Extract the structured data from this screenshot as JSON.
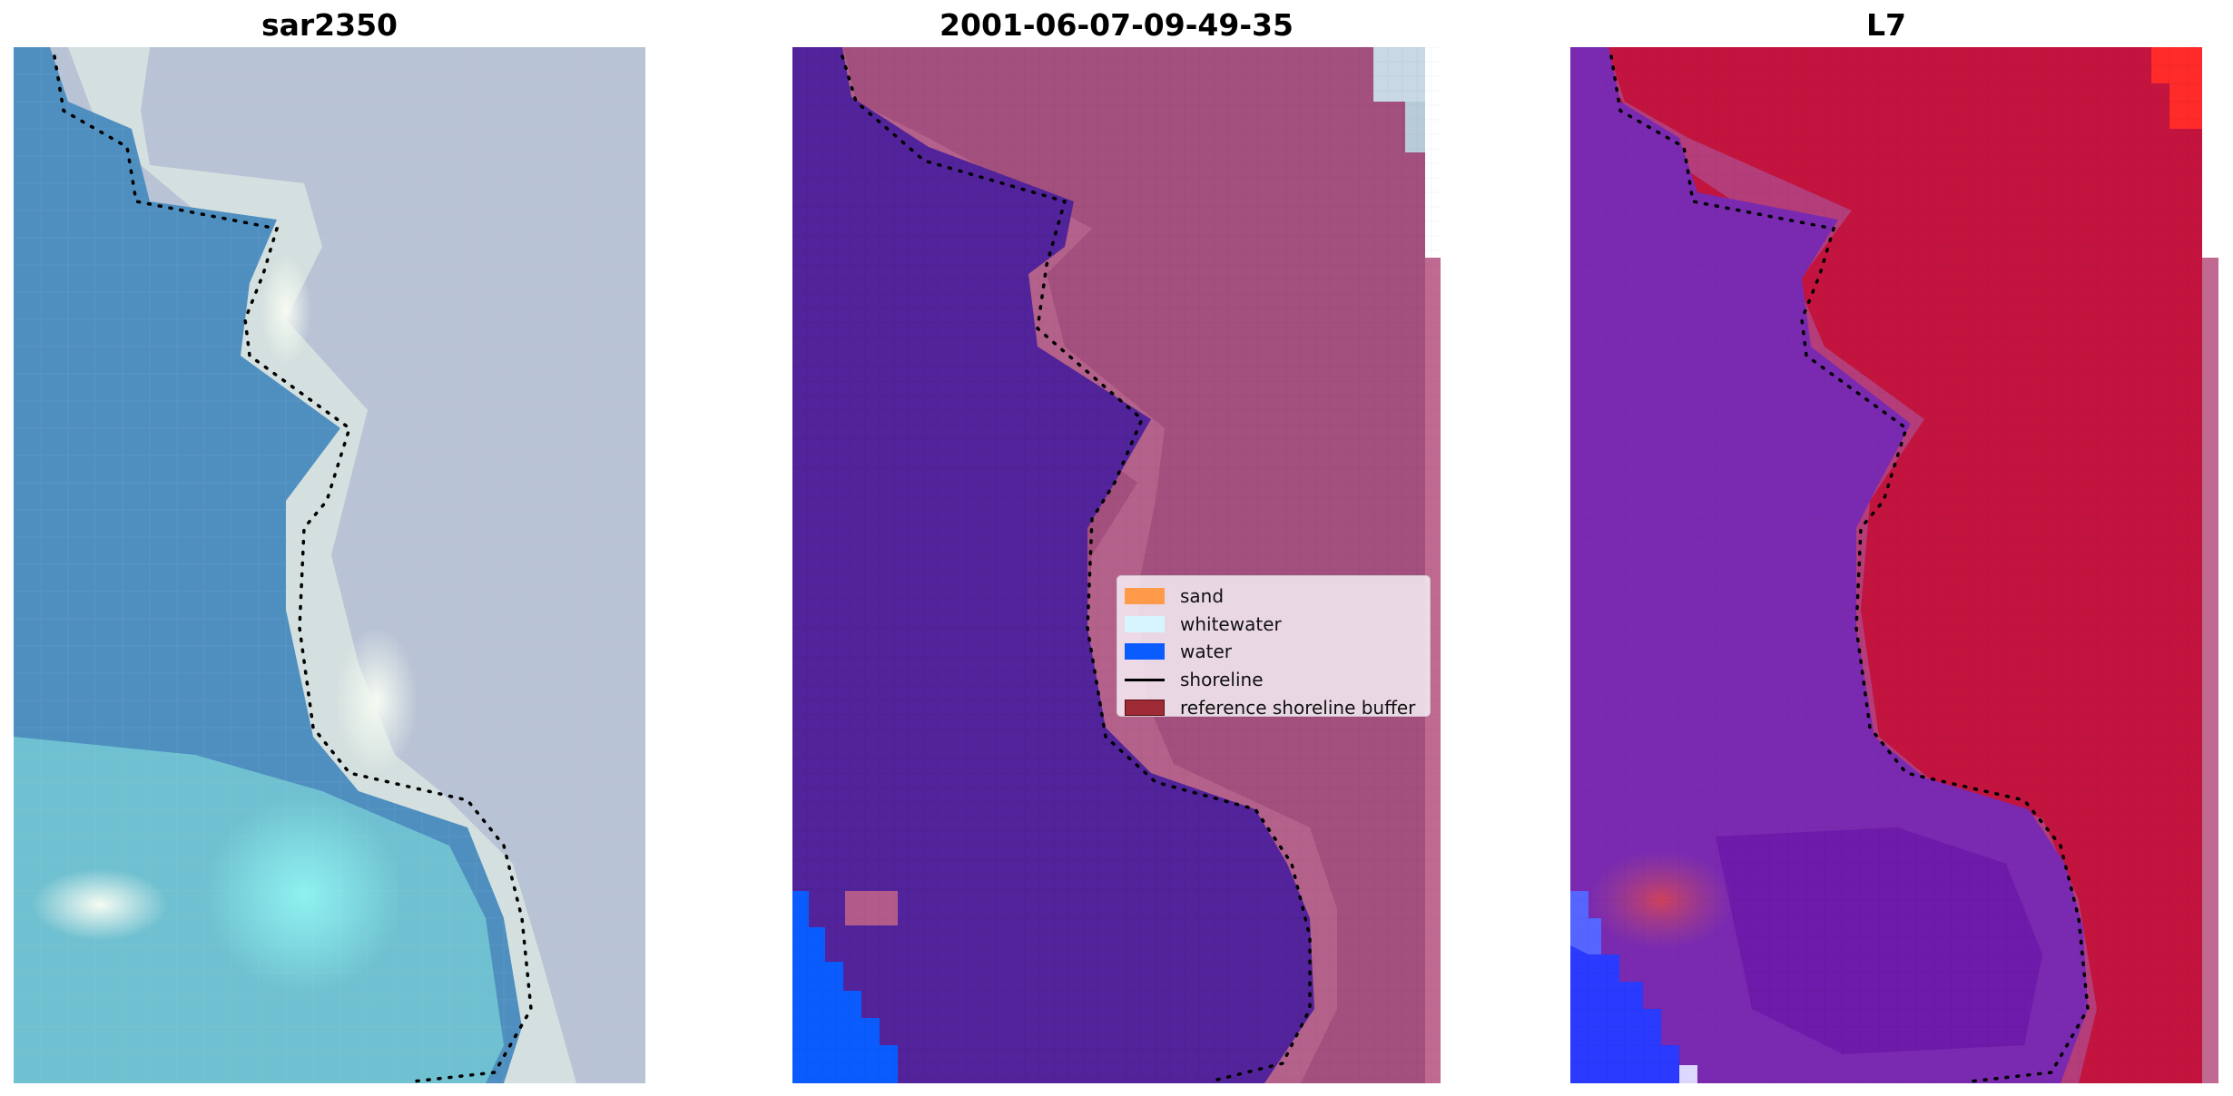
{
  "panels": [
    {
      "title": "sar2350"
    },
    {
      "title": "2001-06-07-09-49-35"
    },
    {
      "title": "L7"
    }
  ],
  "legend": {
    "items": [
      {
        "label": "sand",
        "kind": "patch",
        "color": "#ff9a4a"
      },
      {
        "label": "whitewater",
        "kind": "patch",
        "color": "#d6f5ff"
      },
      {
        "label": "water",
        "kind": "patch",
        "color": "#0a5cff"
      },
      {
        "label": "shoreline",
        "kind": "line",
        "color": "#000000"
      },
      {
        "label": "reference shoreline buffer",
        "kind": "patch",
        "color": "#9e2a35"
      }
    ]
  },
  "colors": {
    "rgb_water": "#4f8fc0",
    "rgb_surf": "#dfe8e4",
    "rgb_land": "#b9c4d6",
    "class_water_overlay": "#52239a",
    "class_land_overlay": "#a3507e",
    "class_water_blue": "#0a5cff",
    "index_water": "#7a2ab0",
    "index_land": "#c2143e",
    "index_high": "#ff2a2a",
    "index_blue": "#2a3aff"
  }
}
